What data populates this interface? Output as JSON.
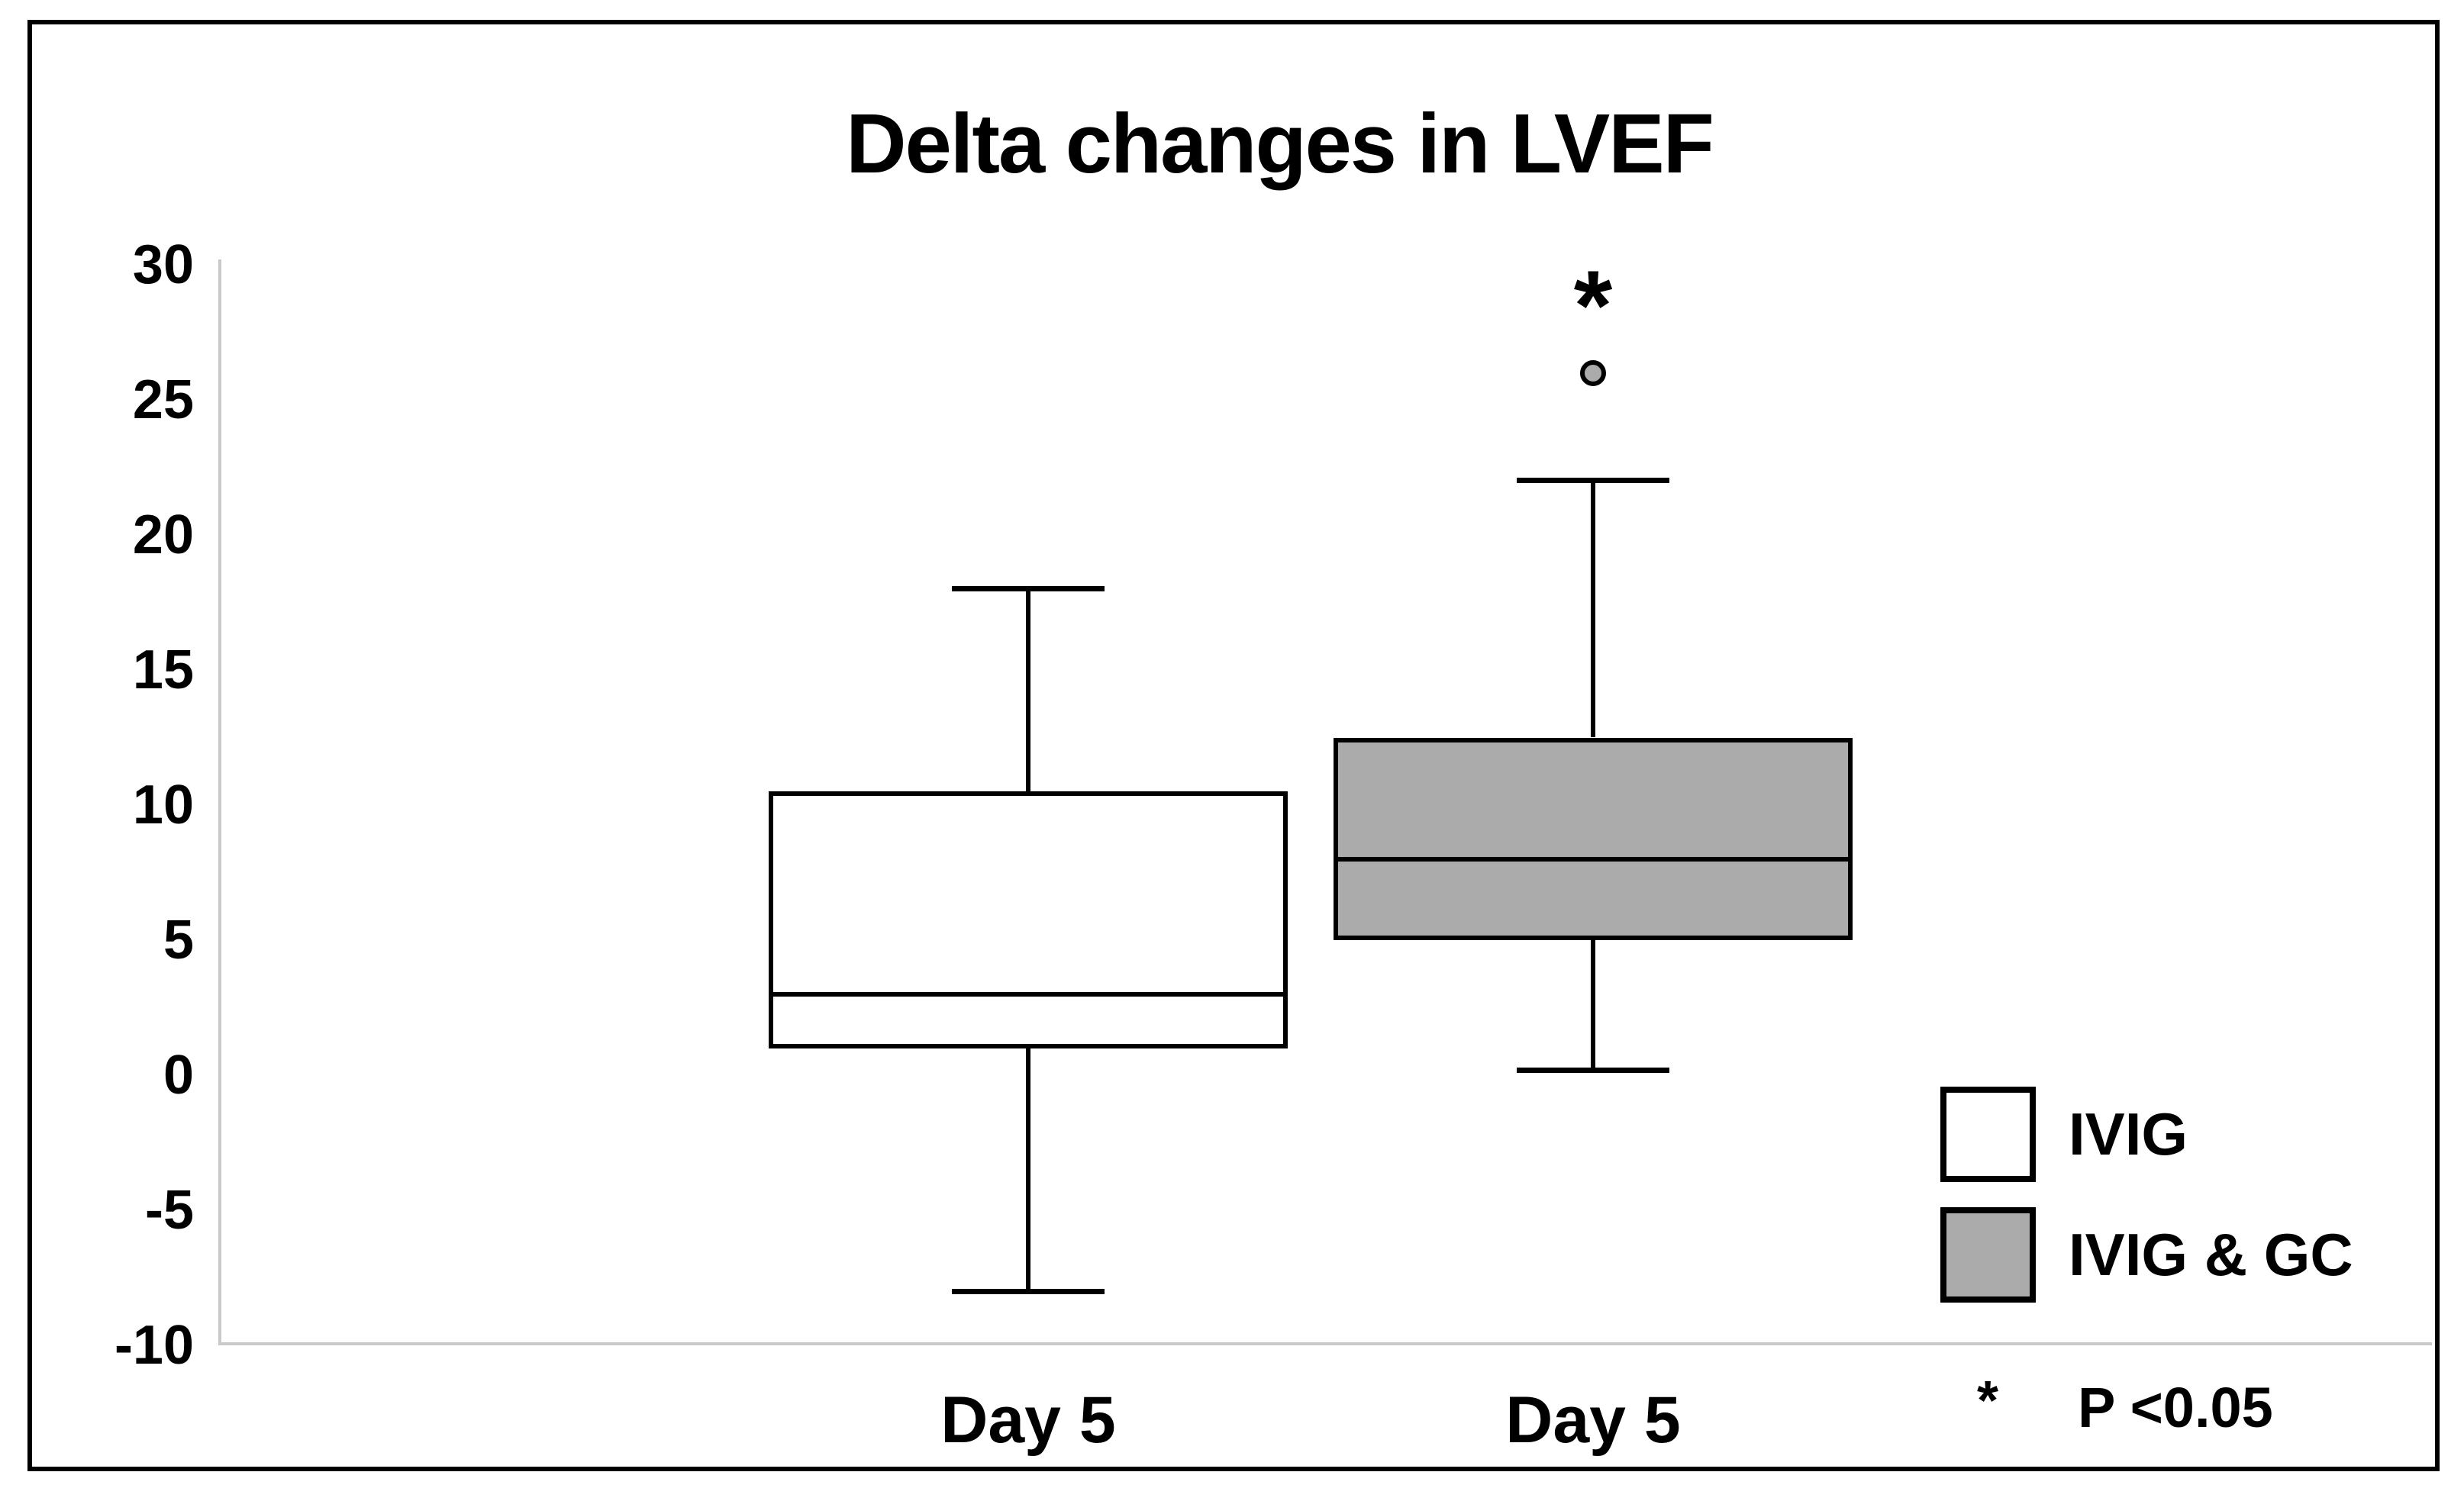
{
  "title": "Delta changes in LVEF",
  "chart_data": {
    "type": "boxplot",
    "title": "Delta changes in LVEF",
    "xlabel": "",
    "ylabel": "",
    "ylim": [
      -10,
      30
    ],
    "yticks": [
      30,
      25,
      20,
      15,
      10,
      5,
      0,
      -5,
      -10
    ],
    "grid": false,
    "legend_position": "bottom-right",
    "categories": [
      "Day 5",
      "Day 5"
    ],
    "series": [
      {
        "name": "IVIG",
        "fill": "#FFFFFF",
        "whisker_low": -8,
        "q1": 1,
        "median": 3,
        "q3": 10.5,
        "whisker_high": 18,
        "outliers": [],
        "annotation": "",
        "annotation_value": null
      },
      {
        "name": "IVIG & GC",
        "fill": "#ABABAB",
        "whisker_low": 0.2,
        "q1": 5,
        "median": 8,
        "q3": 12.5,
        "whisker_high": 22,
        "outliers": [
          26
        ],
        "annotation": "*",
        "annotation_value": 29
      }
    ]
  },
  "legend": {
    "items": [
      {
        "label": "IVIG",
        "fill": "#FFFFFF"
      },
      {
        "label": "IVIG & GC",
        "fill": "#ABABAB"
      }
    ]
  },
  "footnote": {
    "symbol": "*",
    "text": "P <0.05"
  },
  "colors": {
    "axis_line": "#C9C9C9",
    "box_border": "#000000",
    "gray_fill": "#ABABAB",
    "background": "#FFFFFF",
    "frame_border": "#000000"
  }
}
